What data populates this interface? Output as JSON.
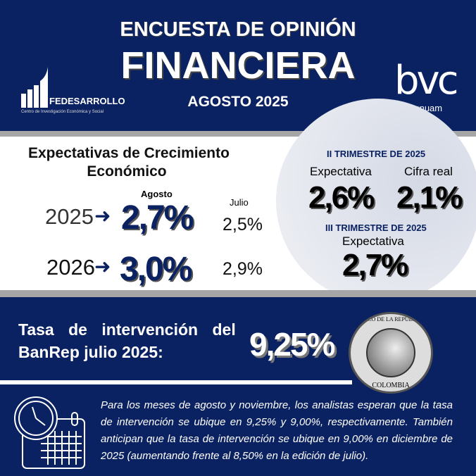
{
  "header": {
    "line1": "ENCUESTA DE OPINIÓN",
    "line2": "FINANCIERA",
    "date": "AGOSTO 2025",
    "fedesarrollo": {
      "name": "FEDESARROLLO",
      "subtitle": "Centro de Investigación Económica y Social"
    },
    "bvc": {
      "name": "bvc",
      "sub": "×nuam"
    }
  },
  "growth": {
    "title1": "Expectativas de Crecimiento",
    "title2": "Económico",
    "col_current": "Agosto",
    "col_prev": "Julio",
    "rows": [
      {
        "year": "2025",
        "current": "2,7%",
        "prev": "2,5%"
      },
      {
        "year": "2026",
        "current": "3,0%",
        "prev": "2,9%"
      }
    ]
  },
  "quarters": {
    "q2_title": "II TRIMESTRE DE 2025",
    "q2_exp_label": "Expectativa",
    "q2_real_label": "Cifra real",
    "q2_exp": "2,6%",
    "q2_real": "2,1%",
    "q3_title": "III TRIMESTRE DE 2025",
    "q3_exp_label": "Expectativa",
    "q3_exp": "2,7%"
  },
  "rate": {
    "label1": "Tasa de intervención del",
    "label2": "BanRep julio 2025:",
    "value": "9,25%",
    "seal": {
      "top": "BANCO DE LA REPÚBLICA",
      "bottom": "COLOMBIA"
    }
  },
  "note": {
    "text": "Para los meses de agosto y noviembre, los analistas esperan que la tasa de intervención se ubique en 9,25% y 9,00%, respectivamente. También anticipan que la tasa de intervención se ubique en 9,00% en diciembre de 2025 (aumentando frente al 8,50% en la edición de julio)."
  },
  "colors": {
    "navy": "#0b2262",
    "gray": "#a6a6a6"
  }
}
